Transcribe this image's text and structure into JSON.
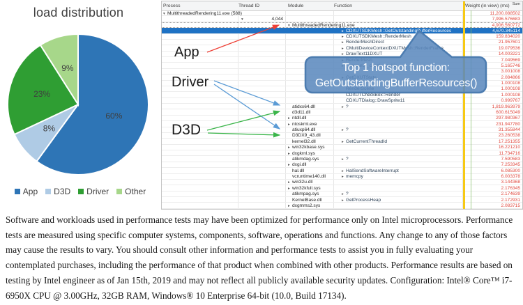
{
  "pie_panel": {
    "title": "load distribution",
    "chart_data": {
      "type": "pie",
      "categories": [
        "App",
        "D3D",
        "Driver",
        "Other"
      ],
      "values": [
        60,
        8,
        23,
        9
      ],
      "labels": [
        "60%",
        "8%",
        "23%",
        "9%"
      ],
      "colors": [
        "#2E75B6",
        "#AFCBE5",
        "#2F9E33",
        "#A7D78A"
      ],
      "title": "load distribution",
      "legend_position": "bottom",
      "start_angle_deg": 0,
      "direction": "clockwise"
    }
  },
  "profiler": {
    "columns": [
      "Process",
      "Thread ID",
      "Module",
      "Function",
      "Weight (in view) (ms)"
    ],
    "weight_agg": "Sum",
    "selected_row_color": "#1f72c4",
    "weight_text_color": "#e0483e",
    "marker_line_color": "#f7c915",
    "rows": [
      {
        "p": "MultithreadedRendering11.exe (588)",
        "pmark": "expanded",
        "w": "11,200.088502"
      },
      {
        "t": "4,044",
        "tmark": "expanded",
        "w": "7,996.576683"
      },
      {
        "m": "MultithreadedRendering11.exe",
        "mmark": "expanded",
        "w": "4,906.560772",
        "focus": true
      },
      {
        "f": "CDXUTSDKMesh::GetOutstandingBufferResources",
        "fmark": "collapsed",
        "w": "4,670.345114",
        "sel": true
      },
      {
        "f": "CDXUTSDKMesh::RenderMesh",
        "fmark": "collapsed",
        "w": "159.834020"
      },
      {
        "f": "RenderMeshDirect",
        "fmark": "collapsed",
        "w": "21.957601"
      },
      {
        "f": "CMultiDeviceContextDXUTMesh::RenderFrame",
        "fmark": "collapsed",
        "w": "19.079536"
      },
      {
        "f": "DrawText11DXUT",
        "fmark": "collapsed",
        "w": "14.003221"
      },
      {
        "f": "RenderMesh",
        "fmark": "collapsed",
        "w": "7.049569"
      },
      {
        "f": "__security_check_cookie",
        "fmark": "collapsed",
        "w": "5.165746"
      },
      {
        "f": "",
        "w": "3.001008"
      },
      {
        "f": "GetDXUTState",
        "fmark": "collapsed",
        "w": "2.084866"
      },
      {
        "f": "",
        "w": "1.000108"
      },
      {
        "f": "RenderScene",
        "w": "1.000108"
      },
      {
        "f": "CDXUTCheckBox::Render",
        "w": "1.000108"
      },
      {
        "f": "CDXUTDialog::DrawSprite11",
        "w": "0.999767"
      },
      {
        "m": "atidxx64.dll",
        "f": "?",
        "fmark": "collapsed",
        "w": "1,819.963979"
      },
      {
        "m": "d3d11.dll",
        "w": "600.615049"
      },
      {
        "m": "ntdll.dll",
        "mmark": "collapsed",
        "w": "297.980367"
      },
      {
        "m": "ntoskrnl.exe",
        "mmark": "collapsed",
        "w": "231.947780"
      },
      {
        "m": "atiuxp64.dll",
        "f": "?",
        "fmark": "collapsed",
        "w": "31.355844"
      },
      {
        "m": "D3DX9_43.dll",
        "w": "23.260538"
      },
      {
        "m": "kernel32.dll",
        "f": "GetCurrentThreadId",
        "fmark": "collapsed",
        "w": "17.251355"
      },
      {
        "m": "win32kbase.sys",
        "mmark": "collapsed",
        "w": "16.221210"
      },
      {
        "m": "dxgkrnl.sys",
        "mmark": "collapsed",
        "w": "11.734716"
      },
      {
        "m": "atikmdag.sys",
        "f": "?",
        "fmark": "collapsed",
        "w": "7.590583"
      },
      {
        "m": "dxgi.dll",
        "mmark": "collapsed",
        "w": "7.253345"
      },
      {
        "m": "hal.dll",
        "f": "HalSendSoftwareInterrupt",
        "fmark": "collapsed",
        "w": "6.085300"
      },
      {
        "m": "vcruntime140.dll",
        "f": "memcpy",
        "fmark": "collapsed",
        "w": "6.003378"
      },
      {
        "m": "win32u.dll",
        "mmark": "collapsed",
        "w": "3.144368"
      },
      {
        "m": "win32kfull.sys",
        "mmark": "collapsed",
        "w": "2.176345"
      },
      {
        "m": "atikmpag.sys",
        "f": "?",
        "fmark": "collapsed",
        "w": "2.174639"
      },
      {
        "m": "KernelBase.dll",
        "f": "GetProcessHeap",
        "fmark": "collapsed",
        "w": "2.172931"
      },
      {
        "m": "dxgmms2.sys",
        "mmark": "collapsed",
        "w": "2.083715"
      }
    ]
  },
  "annotations": {
    "app": {
      "label": "App",
      "arrow_color": "#ee4036"
    },
    "driver": {
      "label": "Driver",
      "arrow_color": "#5b9bd5"
    },
    "d3d": {
      "label": "D3D",
      "arrow_color": "#3bb54a"
    }
  },
  "callout": {
    "line1": "Top 1 hotspot function:",
    "line2": "GetOutstandingBufferResources()",
    "fill": "#5b89bd",
    "border": "#4c7cb0"
  },
  "footer": {
    "text": "Software and workloads used in performance tests may have been optimized for performance only on Intel microprocessors.  Performance tests are measured using specific computer systems, components, software, operations and functions.  Any change to any of those factors may cause the results to vary.  You should consult other information and performance tests to assist you in fully evaluating your contemplated purchases, including the performance of that product when combined with other products.  Performance results are based on testing by Intel engineer as of Jan 15th, 2019 and may not reflect all publicly available security updates.  Configuration: Intel® Core™ i7-6950X CPU @ 3.00GHz, 32GB RAM, Windows® 10 Enterprise 64-bit (10.0, Build 17134)."
  }
}
